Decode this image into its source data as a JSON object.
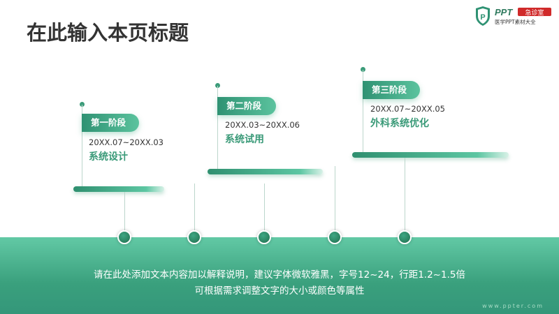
{
  "header": {
    "title": "在此输入本页标题"
  },
  "logo": {
    "text": "PPT",
    "badge": "急诊室",
    "subtitle": "医学PPT素材大全"
  },
  "stages": [
    {
      "label": "第一阶段",
      "date": "20XX.07~20XX.03",
      "name": "系统设计"
    },
    {
      "label": "第二阶段",
      "date": "20XX.03~20XX.06",
      "name": "系统试用"
    },
    {
      "label": "第三阶段",
      "date": "20XX.07~20XX.05",
      "name": "外科系统优化"
    }
  ],
  "footer": {
    "line1": "请在此处添加文本内容加以解释说明，建议字体微软雅黑，字号12~24，行距1.2~1.5倍",
    "line2": "可根据需求调整文字的大小或颜色等属性",
    "url": "www.ppter.com"
  },
  "colors": {
    "accent": "#3a9a78",
    "band": "#4fb793"
  }
}
